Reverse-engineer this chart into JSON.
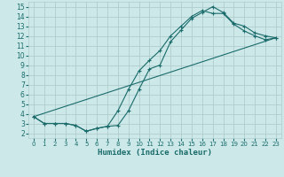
{
  "title": "",
  "xlabel": "Humidex (Indice chaleur)",
  "background_color": "#cce8e8",
  "grid_color": "#b0cccc",
  "line_color": "#1a6b6b",
  "xlim": [
    -0.5,
    23.5
  ],
  "ylim": [
    1.5,
    15.5
  ],
  "xticks": [
    0,
    1,
    2,
    3,
    4,
    5,
    6,
    7,
    8,
    9,
    10,
    11,
    12,
    13,
    14,
    15,
    16,
    17,
    18,
    19,
    20,
    21,
    22,
    23
  ],
  "yticks": [
    2,
    3,
    4,
    5,
    6,
    7,
    8,
    9,
    10,
    11,
    12,
    13,
    14,
    15
  ],
  "line1_x": [
    0,
    1,
    2,
    3,
    4,
    5,
    6,
    7,
    8,
    9,
    10,
    11,
    12,
    13,
    14,
    15,
    16,
    17,
    18,
    19,
    20,
    21,
    22,
    23
  ],
  "line1_y": [
    3.7,
    3.0,
    3.0,
    3.0,
    2.8,
    2.2,
    2.5,
    2.7,
    2.8,
    4.3,
    6.5,
    8.6,
    9.0,
    11.4,
    12.6,
    13.8,
    14.4,
    15.0,
    14.4,
    13.3,
    13.0,
    12.3,
    12.0,
    11.8
  ],
  "line2_x": [
    0,
    1,
    2,
    3,
    4,
    5,
    6,
    7,
    8,
    9,
    10,
    11,
    12,
    13,
    14,
    15,
    16,
    17,
    18,
    19,
    20,
    21,
    22,
    23
  ],
  "line2_y": [
    3.7,
    3.0,
    3.0,
    3.0,
    2.8,
    2.2,
    2.5,
    2.7,
    4.3,
    6.5,
    8.4,
    9.5,
    10.5,
    12.0,
    13.0,
    14.0,
    14.6,
    14.3,
    14.3,
    13.2,
    12.5,
    12.0,
    11.6,
    11.8
  ],
  "line3_x": [
    0,
    23
  ],
  "line3_y": [
    3.7,
    11.8
  ],
  "figsize": [
    3.2,
    2.0
  ],
  "dpi": 100
}
